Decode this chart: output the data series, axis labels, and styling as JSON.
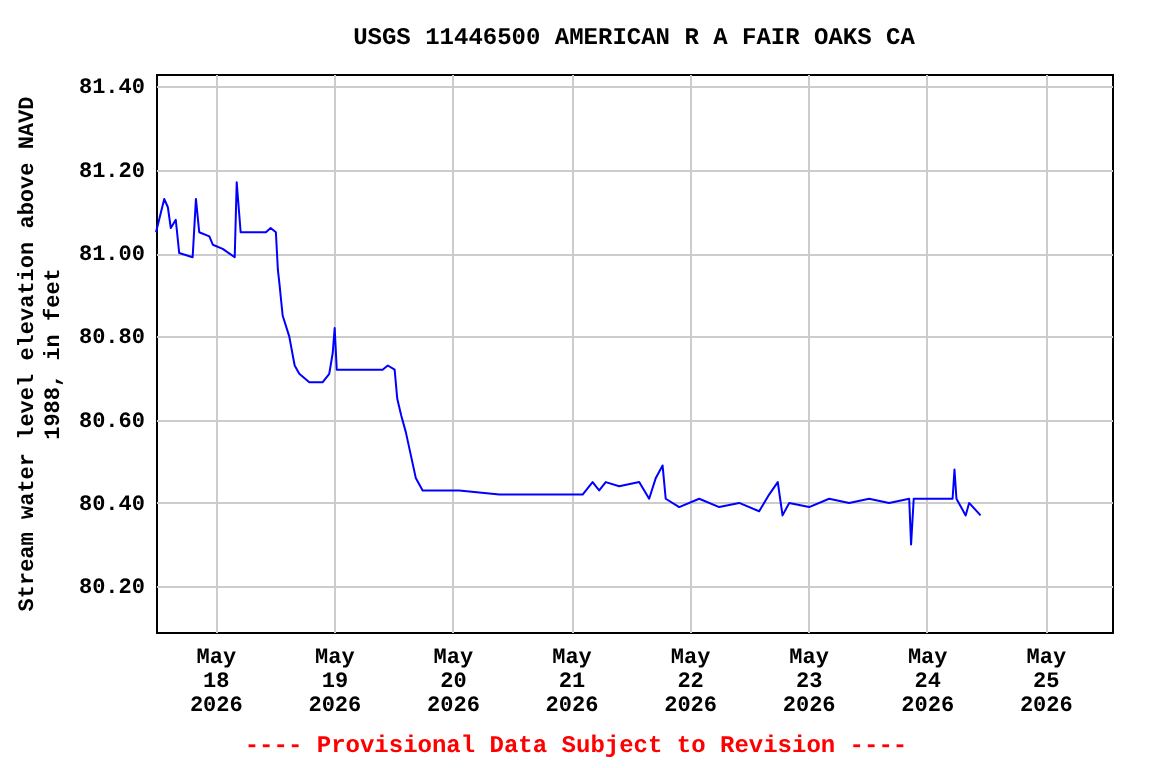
{
  "chart_data": {
    "type": "line",
    "title": "USGS 11446500 AMERICAN R A FAIR OAKS CA",
    "ylabel": "Stream water level elevation above NAVD\n1988, in feet",
    "annotations": [
      "---- Provisional Data Subject to Revision ----"
    ],
    "xlim": [
      "2026-05-17T12:00",
      "2026-05-25T13:30"
    ],
    "xticks": [
      {
        "value": "2026-05-18",
        "label": "May\n18\n2026"
      },
      {
        "value": "2026-05-19",
        "label": "May\n19\n2026"
      },
      {
        "value": "2026-05-20",
        "label": "May\n20\n2026"
      },
      {
        "value": "2026-05-21",
        "label": "May\n21\n2026"
      },
      {
        "value": "2026-05-22",
        "label": "May\n22\n2026"
      },
      {
        "value": "2026-05-23",
        "label": "May\n23\n2026"
      },
      {
        "value": "2026-05-24",
        "label": "May\n24\n2026"
      },
      {
        "value": "2026-05-25",
        "label": "May\n25\n2026"
      }
    ],
    "ylim": [
      80.09,
      81.43
    ],
    "yticks": [
      {
        "value": 80.2,
        "label": "80.20"
      },
      {
        "value": 80.4,
        "label": "80.40"
      },
      {
        "value": 80.6,
        "label": "80.60"
      },
      {
        "value": 80.8,
        "label": "80.80"
      },
      {
        "value": 81.0,
        "label": "81.00"
      },
      {
        "value": 81.2,
        "label": "81.20"
      },
      {
        "value": 81.4,
        "label": "81.40"
      }
    ],
    "grid": true,
    "series": [
      {
        "color": "#0000ff",
        "x": [
          "2026-05-17T12:00",
          "2026-05-17T13:40",
          "2026-05-17T14:24",
          "2026-05-17T15:00",
          "2026-05-17T16:00",
          "2026-05-17T16:42",
          "2026-05-17T19:25",
          "2026-05-17T20:05",
          "2026-05-17T20:45",
          "2026-05-17T22:48",
          "2026-05-17T23:30",
          "2026-05-18T01:30",
          "2026-05-18T03:56",
          "2026-05-18T04:20",
          "2026-05-18T05:08",
          "2026-05-18T10:15",
          "2026-05-18T11:12",
          "2026-05-18T12:16",
          "2026-05-18T12:40",
          "2026-05-18T12:57",
          "2026-05-18T13:38",
          "2026-05-18T14:58",
          "2026-05-18T16:04",
          "2026-05-18T17:00",
          "2026-05-18T19:02",
          "2026-05-18T21:45",
          "2026-05-18T23:04",
          "2026-05-18T23:46",
          "2026-05-19T00:10",
          "2026-05-19T00:35",
          "2026-05-19T09:52",
          "2026-05-19T10:55",
          "2026-05-19T12:18",
          "2026-05-19T12:50",
          "2026-05-19T13:38",
          "2026-05-19T14:34",
          "2026-05-19T15:40",
          "2026-05-19T16:35",
          "2026-05-19T17:58",
          "2026-05-20T01:22",
          "2026-05-20T09:29",
          "2026-05-20T17:34",
          "2026-05-21T02:21",
          "2026-05-21T04:22",
          "2026-05-21T05:42",
          "2026-05-21T07:02",
          "2026-05-21T09:45",
          "2026-05-21T13:48",
          "2026-05-21T15:49",
          "2026-05-21T17:10",
          "2026-05-21T18:32",
          "2026-05-21T19:10",
          "2026-05-21T21:54",
          "2026-05-22T01:57",
          "2026-05-22T06:00",
          "2026-05-22T10:02",
          "2026-05-22T14:05",
          "2026-05-22T16:06",
          "2026-05-22T17:51",
          "2026-05-22T18:49",
          "2026-05-22T20:10",
          "2026-05-23T00:12",
          "2026-05-23T04:15",
          "2026-05-23T08:18",
          "2026-05-23T12:20",
          "2026-05-23T16:23",
          "2026-05-23T20:27",
          "2026-05-23T20:50",
          "2026-05-23T21:22",
          "2026-05-24T05:14",
          "2026-05-24T05:37",
          "2026-05-24T06:01",
          "2026-05-24T07:53",
          "2026-05-24T08:35",
          "2026-05-24T10:54"
        ],
        "values": [
          81.05,
          81.13,
          81.11,
          81.06,
          81.08,
          81.0,
          80.99,
          81.13,
          81.05,
          81.04,
          81.02,
          81.01,
          80.99,
          81.17,
          81.05,
          81.05,
          81.06,
          81.05,
          80.96,
          80.93,
          80.85,
          80.8,
          80.73,
          80.71,
          80.69,
          80.69,
          80.71,
          80.76,
          80.82,
          80.72,
          80.72,
          80.73,
          80.72,
          80.65,
          80.61,
          80.57,
          80.51,
          80.46,
          80.43,
          80.43,
          80.42,
          80.42,
          80.42,
          80.45,
          80.43,
          80.45,
          80.44,
          80.45,
          80.41,
          80.46,
          80.49,
          80.41,
          80.39,
          80.41,
          80.39,
          80.4,
          80.38,
          80.42,
          80.45,
          80.37,
          80.4,
          80.39,
          80.41,
          80.4,
          80.41,
          80.4,
          80.41,
          80.3,
          80.41,
          80.41,
          80.48,
          80.41,
          80.37,
          80.4,
          80.37
        ]
      }
    ]
  }
}
